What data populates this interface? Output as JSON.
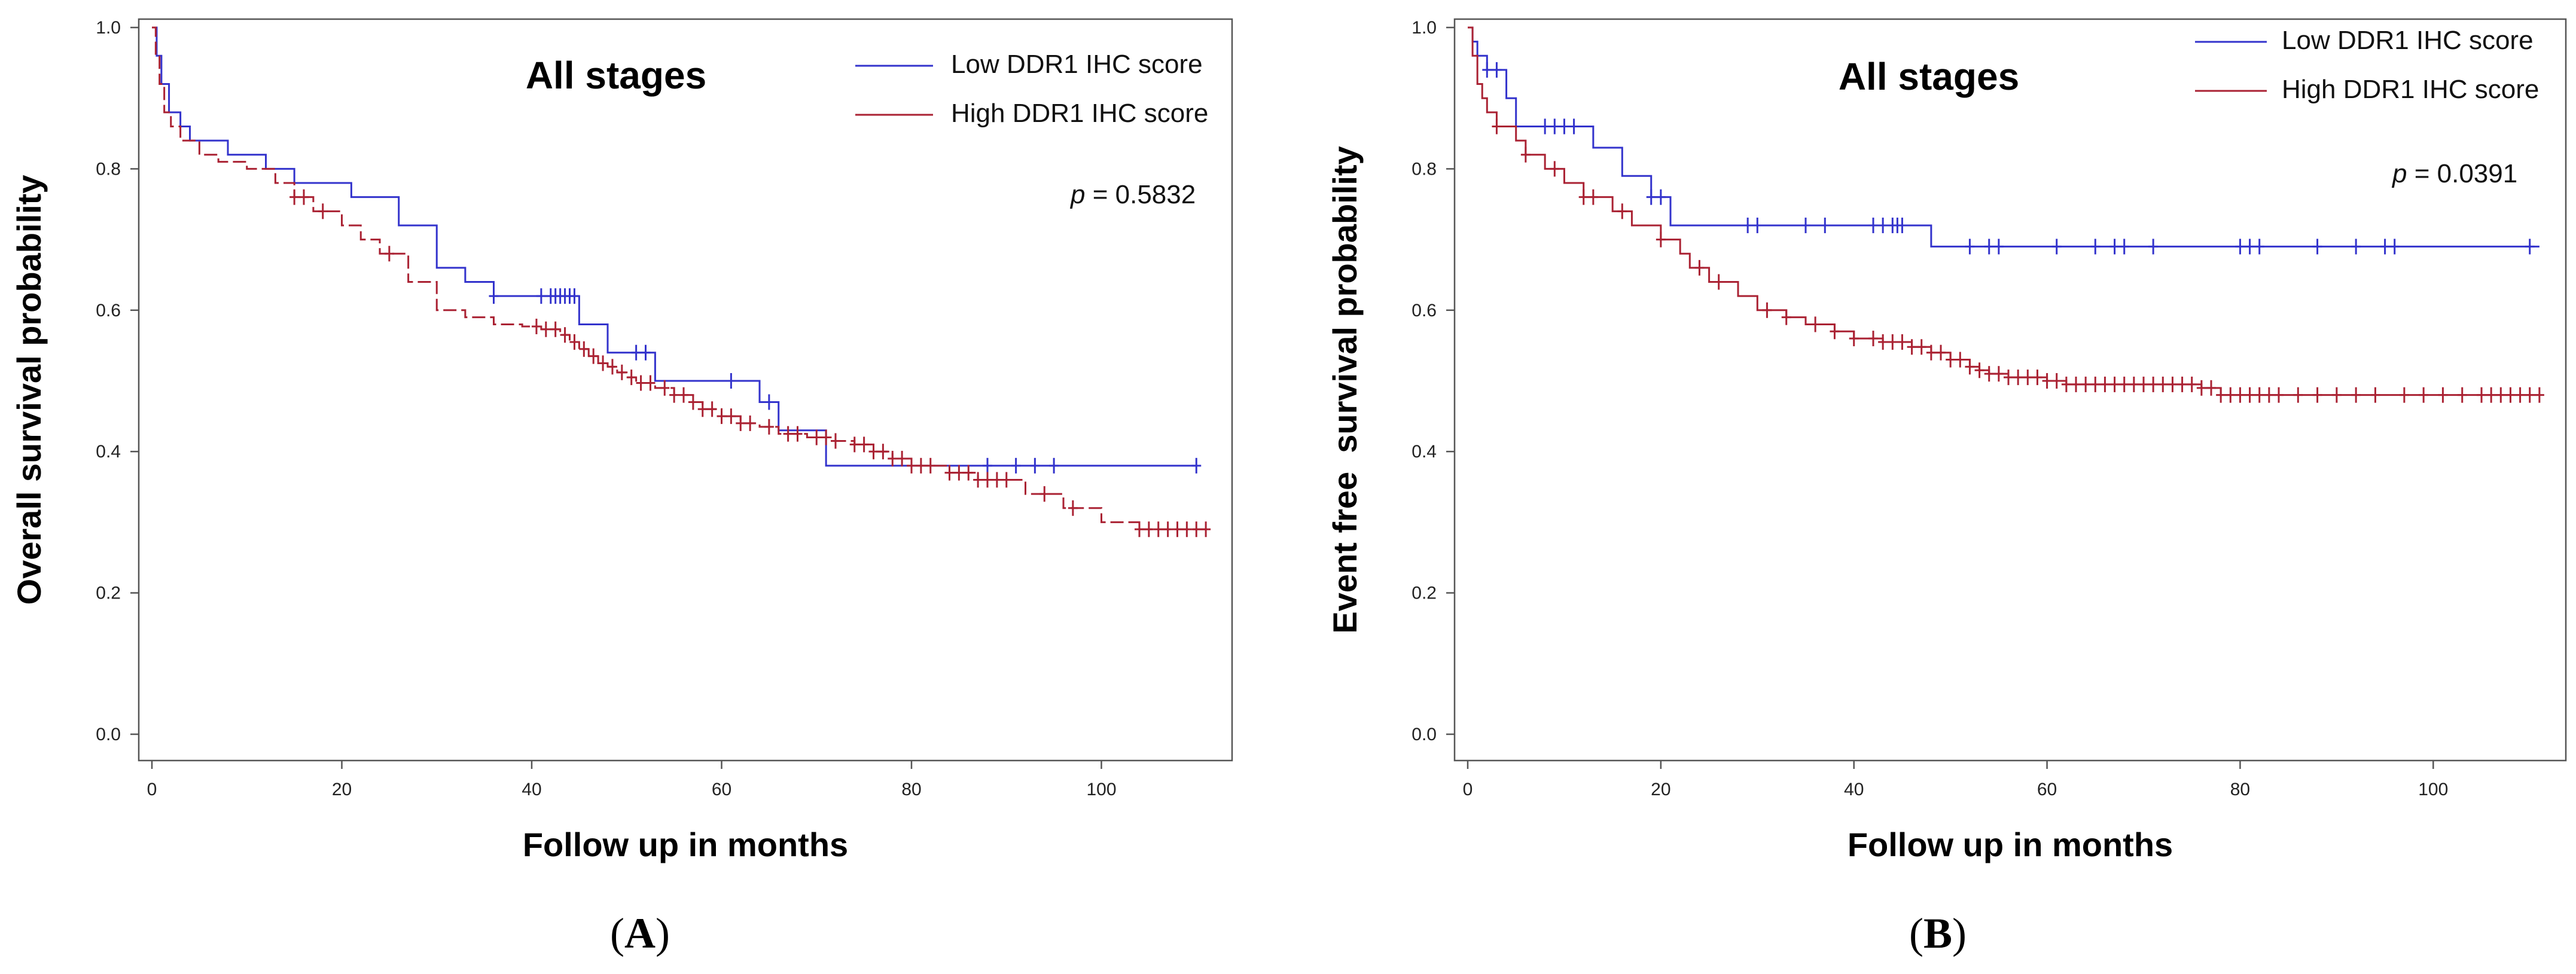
{
  "figure": {
    "panels": [
      {
        "caption_open": "(",
        "caption_letter": "A",
        "caption_close": ")"
      },
      {
        "caption_open": "(",
        "caption_letter": "B",
        "caption_close": ")"
      }
    ]
  },
  "chart_data": [
    {
      "type": "line",
      "title": "All stages",
      "xlabel": "Follow up in months",
      "ylabel": "Overall survival probability",
      "xlim": [
        0,
        112
      ],
      "ylim": [
        0,
        1.0
      ],
      "x_ticks": [
        "0",
        "20",
        "40",
        "60",
        "80",
        "100"
      ],
      "y_ticks": [
        "0.0",
        "0.2",
        "0.4",
        "0.6",
        "0.8",
        "1.0"
      ],
      "annotation": {
        "italic": "p",
        "text": " = 0.5832"
      },
      "legend_position": "top-right",
      "grid": false,
      "series": [
        {
          "name": "Low DDR1 IHC score",
          "color": "#3333cc",
          "dash": "solid",
          "steps": [
            [
              0,
              1.0
            ],
            [
              0.5,
              0.96
            ],
            [
              1,
              0.92
            ],
            [
              1.8,
              0.88
            ],
            [
              3,
              0.86
            ],
            [
              4,
              0.84
            ],
            [
              8,
              0.82
            ],
            [
              12,
              0.8
            ],
            [
              15,
              0.78
            ],
            [
              21,
              0.76
            ],
            [
              26,
              0.72
            ],
            [
              30,
              0.66
            ],
            [
              33,
              0.64
            ],
            [
              36,
              0.62
            ],
            [
              45,
              0.58
            ],
            [
              48,
              0.54
            ],
            [
              53,
              0.5
            ],
            [
              64,
              0.47
            ],
            [
              66,
              0.43
            ],
            [
              71,
              0.38
            ],
            [
              110,
              0.38
            ]
          ],
          "censor_x": [
            36,
            41,
            42,
            42.5,
            43,
            43.5,
            44,
            44.5,
            51,
            52,
            61,
            65,
            88,
            91,
            93,
            95,
            110
          ]
        },
        {
          "name": "High DDR1 IHC score",
          "color": "#aa2233",
          "dash": "dashed",
          "steps": [
            [
              0,
              1.0
            ],
            [
              0.4,
              0.96
            ],
            [
              0.8,
              0.92
            ],
            [
              1.3,
              0.88
            ],
            [
              2,
              0.86
            ],
            [
              3,
              0.84
            ],
            [
              5,
              0.82
            ],
            [
              7,
              0.81
            ],
            [
              10,
              0.8
            ],
            [
              13,
              0.78
            ],
            [
              15,
              0.76
            ],
            [
              17,
              0.74
            ],
            [
              20,
              0.72
            ],
            [
              22,
              0.7
            ],
            [
              24,
              0.68
            ],
            [
              27,
              0.64
            ],
            [
              30,
              0.6
            ],
            [
              33,
              0.59
            ],
            [
              36,
              0.58
            ],
            [
              39,
              0.577
            ],
            [
              41,
              0.573
            ],
            [
              43,
              0.565
            ],
            [
              44,
              0.555
            ],
            [
              45,
              0.545
            ],
            [
              46,
              0.535
            ],
            [
              47,
              0.525
            ],
            [
              48,
              0.52
            ],
            [
              49,
              0.512
            ],
            [
              50,
              0.505
            ],
            [
              51,
              0.497
            ],
            [
              53,
              0.49
            ],
            [
              55,
              0.48
            ],
            [
              57,
              0.47
            ],
            [
              58,
              0.46
            ],
            [
              60,
              0.45
            ],
            [
              62,
              0.44
            ],
            [
              64,
              0.435
            ],
            [
              66,
              0.425
            ],
            [
              69,
              0.42
            ],
            [
              72,
              0.415
            ],
            [
              74,
              0.41
            ],
            [
              76,
              0.4
            ],
            [
              78,
              0.39
            ],
            [
              80,
              0.38
            ],
            [
              84,
              0.37
            ],
            [
              87,
              0.36
            ],
            [
              92,
              0.34
            ],
            [
              96,
              0.32
            ],
            [
              100,
              0.3
            ],
            [
              104,
              0.29
            ],
            [
              111,
              0.29
            ]
          ],
          "censor_x": [
            15,
            16,
            18,
            25,
            40.5,
            41.5,
            42.5,
            43.5,
            44.5,
            45.5,
            46.5,
            47.5,
            48.5,
            49.5,
            50.5,
            51.5,
            52.5,
            54,
            55,
            56,
            57,
            58,
            59,
            60,
            61,
            62,
            63,
            65,
            67,
            68,
            70,
            71,
            72,
            74,
            75,
            76,
            77,
            78,
            79,
            80,
            81,
            82,
            84,
            85,
            86,
            87,
            88,
            89,
            90,
            94,
            97,
            104,
            105,
            106,
            107,
            108,
            109,
            110,
            111
          ]
        }
      ]
    },
    {
      "type": "line",
      "title": "All stages",
      "xlabel": "Follow up in months",
      "ylabel": "Event free  survival probability",
      "xlim": [
        0,
        112
      ],
      "ylim": [
        0,
        1.0
      ],
      "x_ticks": [
        "0",
        "20",
        "40",
        "60",
        "80",
        "100"
      ],
      "y_ticks": [
        "0.0",
        "0.2",
        "0.4",
        "0.6",
        "0.8",
        "1.0"
      ],
      "annotation": {
        "italic": "p",
        "text": " = 0.0391"
      },
      "legend_position": "top-right",
      "grid": false,
      "series": [
        {
          "name": "Low DDR1 IHC score",
          "color": "#3333cc",
          "dash": "solid",
          "steps": [
            [
              0,
              1.0
            ],
            [
              0.5,
              0.98
            ],
            [
              1,
              0.96
            ],
            [
              2,
              0.94
            ],
            [
              4,
              0.9
            ],
            [
              5,
              0.86
            ],
            [
              13,
              0.83
            ],
            [
              16,
              0.79
            ],
            [
              19,
              0.76
            ],
            [
              21,
              0.72
            ],
            [
              48,
              0.69
            ],
            [
              111,
              0.69
            ]
          ],
          "censor_x": [
            2,
            3,
            8,
            9,
            10,
            11,
            19,
            20,
            29,
            30,
            35,
            37,
            42,
            43,
            44,
            44.5,
            45,
            52,
            54,
            55,
            61,
            65,
            67,
            68,
            71,
            80,
            81,
            82,
            88,
            92,
            95,
            96,
            110
          ]
        },
        {
          "name": "High DDR1 IHC score",
          "color": "#aa2233",
          "dash": "solid",
          "steps": [
            [
              0,
              1.0
            ],
            [
              0.5,
              0.96
            ],
            [
              1,
              0.92
            ],
            [
              1.5,
              0.9
            ],
            [
              2,
              0.88
            ],
            [
              3,
              0.86
            ],
            [
              5,
              0.84
            ],
            [
              6,
              0.82
            ],
            [
              8,
              0.8
            ],
            [
              10,
              0.78
            ],
            [
              12,
              0.76
            ],
            [
              15,
              0.74
            ],
            [
              17,
              0.72
            ],
            [
              20,
              0.7
            ],
            [
              22,
              0.68
            ],
            [
              23,
              0.66
            ],
            [
              25,
              0.64
            ],
            [
              28,
              0.62
            ],
            [
              30,
              0.6
            ],
            [
              33,
              0.59
            ],
            [
              35,
              0.58
            ],
            [
              38,
              0.57
            ],
            [
              40,
              0.56
            ],
            [
              43,
              0.555
            ],
            [
              46,
              0.548
            ],
            [
              48,
              0.54
            ],
            [
              50,
              0.53
            ],
            [
              52,
              0.52
            ],
            [
              53,
              0.515
            ],
            [
              54,
              0.51
            ],
            [
              56,
              0.505
            ],
            [
              60,
              0.5
            ],
            [
              62,
              0.495
            ],
            [
              76,
              0.49
            ],
            [
              78,
              0.48
            ],
            [
              111,
              0.48
            ]
          ],
          "censor_x": [
            3,
            6,
            9,
            12,
            13,
            16,
            20,
            24,
            26,
            31,
            33,
            36,
            38,
            40,
            42,
            43,
            44,
            45,
            46,
            47,
            48,
            49,
            50,
            51,
            52,
            53,
            54,
            55,
            56,
            57,
            58,
            59,
            60,
            61,
            62,
            63,
            64,
            65,
            66,
            67,
            68,
            69,
            70,
            71,
            72,
            73,
            74,
            75,
            76,
            77,
            78,
            79,
            80,
            81,
            82,
            83,
            84,
            86,
            88,
            90,
            92,
            94,
            97,
            99,
            101,
            103,
            105,
            106,
            107,
            108,
            109,
            110,
            111
          ]
        }
      ]
    }
  ]
}
